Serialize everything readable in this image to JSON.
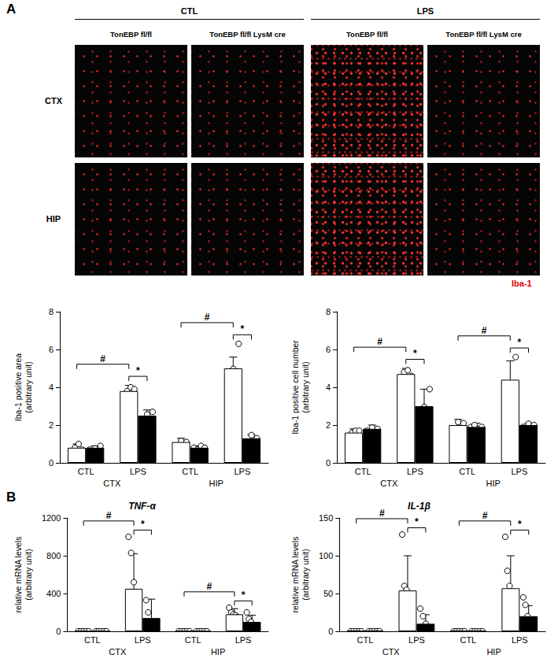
{
  "panel_labels": [
    "A",
    "B"
  ],
  "images": {
    "conditions": [
      "CTL",
      "LPS"
    ],
    "genotypes": [
      "TonEBP fl/fl",
      "TonEBP fl/fl LysM cre"
    ],
    "regions": [
      "CTX",
      "HIP"
    ],
    "stain": "Iba-1"
  },
  "chart_data": [
    {
      "type": "bar",
      "ylabel": "Iba-1 positive area\n(arbitrary unit)",
      "categories": [
        "CTL",
        "LPS",
        "CTL",
        "LPS"
      ],
      "groups": [
        "CTX",
        "HIP"
      ],
      "series": [
        {
          "name": "TonEBP fl/fl",
          "color": "#ffffff",
          "values": [
            0.8,
            3.8,
            1.1,
            5.0
          ],
          "errors": [
            0.2,
            0.3,
            0.2,
            0.6
          ],
          "points": [
            [
              0.6,
              0.8,
              1.0,
              0.7
            ],
            [
              3.5,
              3.8,
              4.0,
              3.9
            ],
            [
              0.9,
              1.2,
              1.1
            ],
            [
              4.5,
              5.0,
              6.3
            ]
          ]
        },
        {
          "name": "TonEBP fl/fl LysM cre",
          "color": "#000000",
          "values": [
            0.8,
            2.5,
            0.8,
            1.3
          ],
          "errors": [
            0.1,
            0.3,
            0.1,
            0.2
          ],
          "points": [
            [
              0.7,
              0.8,
              0.9
            ],
            [
              2.2,
              2.6,
              2.7
            ],
            [
              0.8,
              0.7,
              0.9,
              0.8
            ],
            [
              1.1,
              1.5,
              1.3
            ]
          ]
        }
      ],
      "annotations": [
        {
          "text": "#",
          "from": [
            0,
            0
          ],
          "to": [
            1,
            0
          ]
        },
        {
          "text": "*",
          "from": [
            1,
            0
          ],
          "to": [
            1,
            1
          ]
        },
        {
          "text": "#",
          "from": [
            2,
            0
          ],
          "to": [
            3,
            0
          ]
        },
        {
          "text": "*",
          "from": [
            3,
            0
          ],
          "to": [
            3,
            1
          ]
        }
      ],
      "ylim": [
        0,
        8
      ],
      "yticks": [
        0,
        2,
        4,
        6,
        8
      ],
      "grid": false
    },
    {
      "type": "bar",
      "ylabel": "Iba-1 positive cell number\n(arbitrary unit)",
      "categories": [
        "CTL",
        "LPS",
        "CTL",
        "LPS"
      ],
      "groups": [
        "CTX",
        "HIP"
      ],
      "series": [
        {
          "name": "TonEBP fl/fl",
          "color": "#ffffff",
          "values": [
            1.6,
            4.7,
            2.0,
            4.4
          ],
          "errors": [
            0.2,
            0.3,
            0.3,
            1.0
          ],
          "points": [
            [
              1.4,
              1.6,
              1.7,
              1.7
            ],
            [
              4.4,
              4.8,
              4.9,
              4.6
            ],
            [
              1.8,
              2.2,
              2.1
            ],
            [
              3.6,
              4.2,
              5.6
            ]
          ]
        },
        {
          "name": "TonEBP fl/fl LysM cre",
          "color": "#000000",
          "values": [
            1.8,
            3.0,
            1.9,
            2.0
          ],
          "errors": [
            0.2,
            0.9,
            0.2,
            0.1
          ],
          "points": [
            [
              1.7,
              1.9,
              1.8
            ],
            [
              2.1,
              3.0,
              3.9
            ],
            [
              1.9,
              2.0,
              1.8,
              1.9
            ],
            [
              1.9,
              2.1,
              2.0
            ]
          ]
        }
      ],
      "annotations": [
        {
          "text": "#",
          "from": [
            0,
            0
          ],
          "to": [
            1,
            0
          ]
        },
        {
          "text": "*",
          "from": [
            1,
            0
          ],
          "to": [
            1,
            1
          ]
        },
        {
          "text": "#",
          "from": [
            2,
            0
          ],
          "to": [
            3,
            0
          ]
        },
        {
          "text": "*",
          "from": [
            3,
            0
          ],
          "to": [
            3,
            1
          ]
        }
      ],
      "ylim": [
        0,
        8
      ],
      "yticks": [
        0,
        2,
        4,
        6,
        8
      ],
      "grid": false
    },
    {
      "type": "bar",
      "title": "TNF-α",
      "ylabel": "relative mRNA levels\n(arbitrary unit)",
      "categories": [
        "CTL",
        "LPS",
        "CTL",
        "LPS"
      ],
      "groups": [
        "CTX",
        "HIP"
      ],
      "series": [
        {
          "name": "TonEBP fl/fl",
          "color": "#ffffff",
          "values": [
            1,
            450,
            1,
            180
          ],
          "errors": [
            0,
            370,
            0,
            60
          ],
          "points": [
            [
              0,
              0,
              0,
              0,
              0
            ],
            [
              1000,
              830,
              520,
              250,
              80
            ],
            [
              0,
              0,
              0,
              0,
              0
            ],
            [
              250,
              200,
              180,
              170,
              150,
              100
            ]
          ]
        },
        {
          "name": "TonEBP fl/fl LysM cre",
          "color": "#000000",
          "values": [
            1,
            140,
            1,
            100
          ],
          "errors": [
            0,
            200,
            0,
            70
          ],
          "points": [
            [
              0,
              0,
              0,
              0,
              0
            ],
            [
              330,
              200,
              80,
              50,
              40,
              20
            ],
            [
              0,
              0,
              0,
              0,
              0
            ],
            [
              200,
              130,
              100,
              60,
              40,
              30
            ]
          ]
        }
      ],
      "annotations": [
        {
          "text": "#",
          "from": [
            0,
            0
          ],
          "to": [
            1,
            0
          ]
        },
        {
          "text": "*",
          "from": [
            1,
            0
          ],
          "to": [
            1,
            1
          ]
        },
        {
          "text": "#",
          "from": [
            2,
            0
          ],
          "to": [
            3,
            0
          ]
        },
        {
          "text": "*",
          "from": [
            3,
            0
          ],
          "to": [
            3,
            1
          ]
        }
      ],
      "ylim": [
        0,
        1200
      ],
      "yticks": [
        0,
        400,
        800,
        1200
      ],
      "grid": false
    },
    {
      "type": "bar",
      "title": "IL-1β",
      "ylabel": "relative mRNA levels\n(arbitrary unit)",
      "categories": [
        "CTL",
        "LPS",
        "CTL",
        "LPS"
      ],
      "groups": [
        "CTX",
        "HIP"
      ],
      "series": [
        {
          "name": "TonEBP fl/fl",
          "color": "#ffffff",
          "values": [
            1,
            54,
            1,
            57
          ],
          "errors": [
            0,
            46,
            0,
            43
          ],
          "points": [
            [
              0,
              0,
              0,
              0,
              0
            ],
            [
              128,
              60,
              55,
              35,
              20,
              0
            ],
            [
              0,
              0,
              0,
              0,
              0
            ],
            [
              125,
              80,
              60,
              45,
              25,
              5
            ]
          ]
        },
        {
          "name": "TonEBP fl/fl LysM cre",
          "color": "#000000",
          "values": [
            1,
            10,
            1,
            20
          ],
          "errors": [
            0,
            12,
            0,
            14
          ],
          "points": [
            [
              0,
              0,
              0,
              0,
              0
            ],
            [
              30,
              20,
              10,
              5,
              2
            ],
            [
              0,
              0,
              0,
              0,
              0
            ],
            [
              45,
              35,
              20,
              10,
              5,
              2
            ]
          ]
        }
      ],
      "annotations": [
        {
          "text": "#",
          "from": [
            0,
            0
          ],
          "to": [
            1,
            0
          ]
        },
        {
          "text": "*",
          "from": [
            1,
            0
          ],
          "to": [
            1,
            1
          ]
        },
        {
          "text": "#",
          "from": [
            2,
            0
          ],
          "to": [
            3,
            0
          ]
        },
        {
          "text": "*",
          "from": [
            3,
            0
          ],
          "to": [
            3,
            1
          ]
        }
      ],
      "ylim": [
        0,
        150
      ],
      "yticks": [
        0,
        50,
        100,
        150
      ],
      "grid": false
    }
  ]
}
